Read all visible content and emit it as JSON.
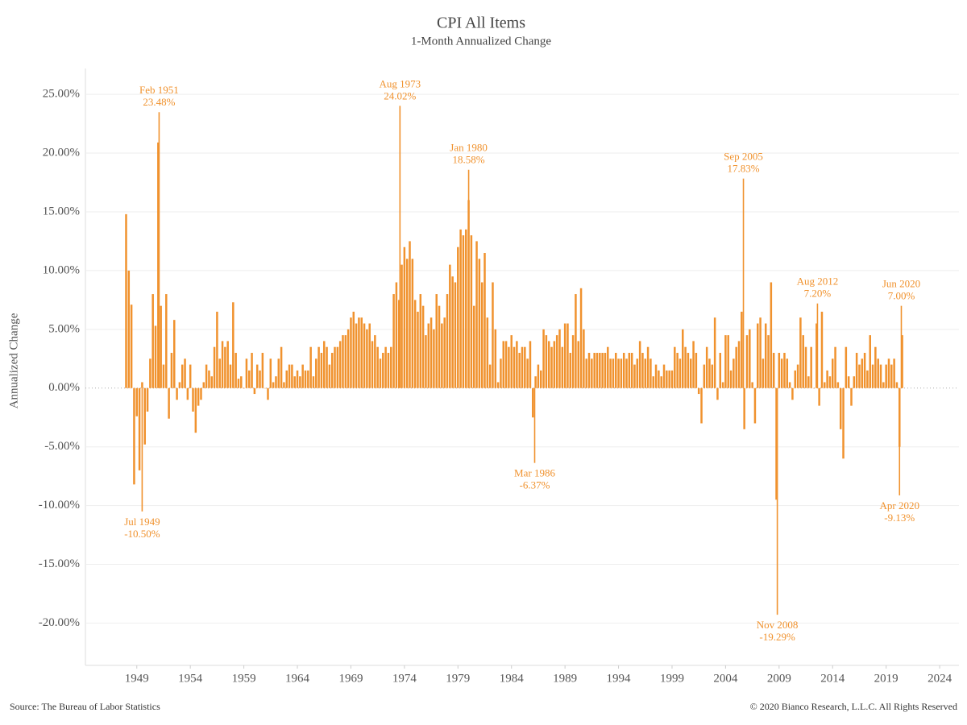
{
  "chart_data": {
    "type": "bar",
    "title": "CPI All Items",
    "subtitle": "1-Month Annualized Change",
    "y_label": "Annualized Change",
    "source": "Source: The Bureau of Labor Statistics",
    "copyright": "© 2020 Bianco Research, L.L.C. All Rights Reserved",
    "color": "#f0922e",
    "grid": true,
    "xlim": [
      1944.2,
      2025.8
    ],
    "xticks": [
      1949,
      1954,
      1959,
      1964,
      1969,
      1974,
      1979,
      1984,
      1989,
      1994,
      1999,
      2004,
      2009,
      2014,
      2019,
      2024
    ],
    "ylim": [
      -23.6,
      27.2
    ],
    "yticks": [
      {
        "value": -20,
        "label": "-20.00%"
      },
      {
        "value": -15,
        "label": "-15.00%"
      },
      {
        "value": -10,
        "label": "-10.00%"
      },
      {
        "value": -5,
        "label": "-5.00%"
      },
      {
        "value": 0,
        "label": "0.00%"
      },
      {
        "value": 5,
        "label": "5.00%"
      },
      {
        "value": 10,
        "label": "10.00%"
      },
      {
        "value": 15,
        "label": "15.00%"
      },
      {
        "value": 20,
        "label": "20.00%"
      },
      {
        "value": 25,
        "label": "25.00%"
      }
    ],
    "x": [
      1948,
      1948.25,
      1948.5,
      1948.75,
      1949,
      1949.25,
      1949.5,
      1949.75,
      1950,
      1950.25,
      1950.5,
      1950.75,
      1951,
      1951.25,
      1951.5,
      1951.75,
      1952,
      1952.25,
      1952.5,
      1952.75,
      1953,
      1953.25,
      1953.5,
      1953.75,
      1954,
      1954.25,
      1954.5,
      1954.75,
      1955,
      1955.25,
      1955.5,
      1955.75,
      1956,
      1956.25,
      1956.5,
      1956.75,
      1957,
      1957.25,
      1957.5,
      1957.75,
      1958,
      1958.25,
      1958.5,
      1958.75,
      1959,
      1959.25,
      1959.5,
      1959.75,
      1960,
      1960.25,
      1960.5,
      1960.75,
      1961,
      1961.25,
      1961.5,
      1961.75,
      1962,
      1962.25,
      1962.5,
      1962.75,
      1963,
      1963.25,
      1963.5,
      1963.75,
      1964,
      1964.25,
      1964.5,
      1964.75,
      1965,
      1965.25,
      1965.5,
      1965.75,
      1966,
      1966.25,
      1966.5,
      1966.75,
      1967,
      1967.25,
      1967.5,
      1967.75,
      1968,
      1968.25,
      1968.5,
      1968.75,
      1969,
      1969.25,
      1969.5,
      1969.75,
      1970,
      1970.25,
      1970.5,
      1970.75,
      1971,
      1971.25,
      1971.5,
      1971.75,
      1972,
      1972.25,
      1972.5,
      1972.75,
      1973,
      1973.25,
      1973.5,
      1973.75,
      1974,
      1974.25,
      1974.5,
      1974.75,
      1975,
      1975.25,
      1975.5,
      1975.75,
      1976,
      1976.25,
      1976.5,
      1976.75,
      1977,
      1977.25,
      1977.5,
      1977.75,
      1978,
      1978.25,
      1978.5,
      1978.75,
      1979,
      1979.25,
      1979.5,
      1979.75,
      1980,
      1980.25,
      1980.5,
      1980.75,
      1981,
      1981.25,
      1981.5,
      1981.75,
      1982,
      1982.25,
      1982.5,
      1982.75,
      1983,
      1983.25,
      1983.5,
      1983.75,
      1984,
      1984.25,
      1984.5,
      1984.75,
      1985,
      1985.25,
      1985.5,
      1985.75,
      1986,
      1986.25,
      1986.5,
      1986.75,
      1987,
      1987.25,
      1987.5,
      1987.75,
      1988,
      1988.25,
      1988.5,
      1988.75,
      1989,
      1989.25,
      1989.5,
      1989.75,
      1990,
      1990.25,
      1990.5,
      1990.75,
      1991,
      1991.25,
      1991.5,
      1991.75,
      1992,
      1992.25,
      1992.5,
      1992.75,
      1993,
      1993.25,
      1993.5,
      1993.75,
      1994,
      1994.25,
      1994.5,
      1994.75,
      1995,
      1995.25,
      1995.5,
      1995.75,
      1996,
      1996.25,
      1996.5,
      1996.75,
      1997,
      1997.25,
      1997.5,
      1997.75,
      1998,
      1998.25,
      1998.5,
      1998.75,
      1999,
      1999.25,
      1999.5,
      1999.75,
      2000,
      2000.25,
      2000.5,
      2000.75,
      2001,
      2001.25,
      2001.5,
      2001.75,
      2002,
      2002.25,
      2002.5,
      2002.75,
      2003,
      2003.25,
      2003.5,
      2003.75,
      2004,
      2004.25,
      2004.5,
      2004.75,
      2005,
      2005.25,
      2005.5,
      2005.75,
      2006,
      2006.25,
      2006.5,
      2006.75,
      2007,
      2007.25,
      2007.5,
      2007.75,
      2008,
      2008.25,
      2008.5,
      2008.75,
      2009,
      2009.25,
      2009.5,
      2009.75,
      2010,
      2010.25,
      2010.5,
      2010.75,
      2011,
      2011.25,
      2011.5,
      2011.75,
      2012,
      2012.25,
      2012.5,
      2012.75,
      2013,
      2013.25,
      2013.5,
      2013.75,
      2014,
      2014.25,
      2014.5,
      2014.75,
      2015,
      2015.25,
      2015.5,
      2015.75,
      2016,
      2016.25,
      2016.5,
      2016.75,
      2017,
      2017.25,
      2017.5,
      2017.75,
      2018,
      2018.25,
      2018.5,
      2018.75,
      2019,
      2019.25,
      2019.5,
      2019.75,
      2020,
      2020.25,
      2020.5
    ],
    "values": [
      14.8,
      10.0,
      7.1,
      -8.2,
      -2.4,
      -7.0,
      0.5,
      -4.8,
      -2.0,
      2.5,
      8.0,
      5.3,
      20.9,
      7.0,
      2.0,
      8.0,
      -2.6,
      3.0,
      5.8,
      -1.0,
      0.5,
      2.0,
      2.5,
      -1.0,
      2.0,
      -2.0,
      -3.8,
      -1.5,
      -1.0,
      0.5,
      2.0,
      1.5,
      1.0,
      3.5,
      6.5,
      2.5,
      4.0,
      3.5,
      4.0,
      2.0,
      7.3,
      3.0,
      0.8,
      1.0,
      0.0,
      2.5,
      1.5,
      3.0,
      -0.5,
      2.0,
      1.5,
      3.0,
      0.0,
      -1.0,
      2.5,
      0.5,
      1.0,
      2.5,
      3.5,
      0.5,
      1.5,
      2.0,
      2.0,
      1.0,
      1.5,
      1.0,
      2.0,
      1.5,
      1.5,
      3.5,
      1.0,
      2.5,
      3.5,
      3.0,
      4.0,
      3.5,
      2.0,
      3.0,
      3.5,
      3.5,
      4.0,
      4.5,
      4.5,
      5.0,
      6.0,
      6.5,
      5.5,
      6.0,
      6.0,
      5.5,
      5.0,
      5.5,
      4.0,
      4.5,
      3.5,
      2.5,
      3.0,
      3.5,
      3.0,
      3.5,
      8.0,
      9.0,
      7.5,
      10.5,
      12.0,
      11.0,
      12.5,
      11.0,
      7.5,
      6.5,
      8.0,
      7.0,
      4.5,
      5.5,
      6.0,
      5.0,
      8.0,
      7.0,
      5.5,
      6.0,
      8.0,
      10.5,
      9.5,
      9.0,
      12.0,
      13.5,
      13.0,
      13.5,
      16.0,
      13.0,
      7.0,
      12.5,
      11.0,
      9.0,
      11.5,
      6.0,
      2.0,
      9.0,
      5.0,
      0.5,
      2.5,
      4.0,
      4.0,
      3.5,
      4.5,
      3.5,
      4.0,
      3.0,
      3.5,
      3.5,
      2.5,
      4.0,
      -2.5,
      1.0,
      2.0,
      1.5,
      5.0,
      4.5,
      4.0,
      3.5,
      4.0,
      4.5,
      5.0,
      3.5,
      5.5,
      5.5,
      3.0,
      4.5,
      8.0,
      4.0,
      8.5,
      5.0,
      2.5,
      3.0,
      2.5,
      3.0,
      3.0,
      3.0,
      3.0,
      3.0,
      3.5,
      2.5,
      2.5,
      3.0,
      2.5,
      2.5,
      3.0,
      2.5,
      3.0,
      3.0,
      2.0,
      2.5,
      4.0,
      3.0,
      2.5,
      3.5,
      2.5,
      1.0,
      2.0,
      1.5,
      1.0,
      2.0,
      1.5,
      1.5,
      1.5,
      3.5,
      3.0,
      2.5,
      5.0,
      3.5,
      3.0,
      2.5,
      4.0,
      3.0,
      -0.5,
      -3.0,
      2.0,
      3.5,
      2.5,
      2.0,
      6.0,
      -1.0,
      3.0,
      0.5,
      4.5,
      4.5,
      1.5,
      2.5,
      3.5,
      4.0,
      6.5,
      -3.5,
      4.5,
      5.0,
      0.5,
      -3.0,
      5.5,
      6.0,
      2.5,
      5.5,
      4.5,
      9.0,
      3.0,
      -9.5,
      3.0,
      2.5,
      3.0,
      2.5,
      0.5,
      -1.0,
      1.5,
      2.0,
      6.0,
      4.5,
      3.5,
      1.0,
      3.5,
      0.0,
      5.5,
      -1.5,
      6.5,
      0.5,
      1.5,
      1.0,
      2.5,
      3.5,
      0.5,
      -3.5,
      -6.0,
      3.5,
      1.0,
      -1.5,
      1.0,
      3.0,
      2.0,
      2.5,
      3.0,
      1.5,
      4.5,
      2.0,
      3.5,
      2.5,
      2.0,
      0.5,
      2.0,
      2.5,
      2.0,
      2.5,
      0.5,
      -5.0,
      4.5
    ],
    "annotations": [
      {
        "label": "Jul 1949",
        "x": 1949.5,
        "value": -10.5,
        "value_label": "-10.50%"
      },
      {
        "label": "Feb 1951",
        "x": 1951.083,
        "value": 23.48,
        "value_label": "23.48%"
      },
      {
        "label": "Aug 1973",
        "x": 1973.583,
        "value": 24.02,
        "value_label": "24.02%"
      },
      {
        "label": "Jan 1980",
        "x": 1980.0,
        "value": 18.58,
        "value_label": "18.58%"
      },
      {
        "label": "Mar 1986",
        "x": 1986.167,
        "value": -6.37,
        "value_label": "-6.37%"
      },
      {
        "label": "Sep 2005",
        "x": 2005.667,
        "value": 17.83,
        "value_label": "17.83%"
      },
      {
        "label": "Nov 2008",
        "x": 2008.833,
        "value": -19.29,
        "value_label": "-19.29%"
      },
      {
        "label": "Aug 2012",
        "x": 2012.583,
        "value": 7.2,
        "value_label": "7.20%"
      },
      {
        "label": "Apr 2020",
        "x": 2020.25,
        "value": -9.13,
        "value_label": "-9.13%"
      },
      {
        "label": "Jun 2020",
        "x": 2020.417,
        "value": 7.0,
        "value_label": "7.00%"
      }
    ]
  }
}
